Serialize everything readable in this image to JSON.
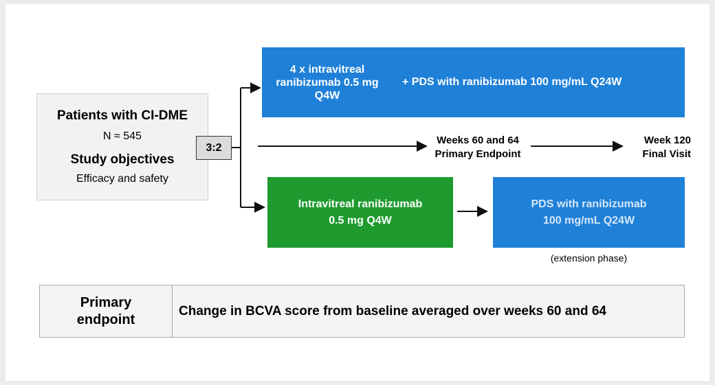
{
  "patients": {
    "title": "Patients with CI-DME",
    "n": "N ≈ 545",
    "objectives_title": "Study objectives",
    "objectives": "Efficacy and safety"
  },
  "ratio": "3:2",
  "arm1": {
    "induction": [
      "4 x intravitreal",
      "ranibizumab 0.5 mg",
      "Q4W"
    ],
    "maintenance": "+  PDS with ranibizumab 100 mg/mL Q24W"
  },
  "timeline": {
    "primary": [
      "Weeks 60 and 64",
      "Primary Endpoint"
    ],
    "final": [
      "Week 120",
      "Final Visit"
    ]
  },
  "arm2": {
    "control": [
      "Intravitreal ranibizumab",
      "0.5 mg Q4W"
    ],
    "extension": [
      "PDS with ranibizumab",
      "100 mg/mL Q24W"
    ],
    "note": "(extension phase)"
  },
  "endpoint": {
    "label": [
      "Primary",
      "endpoint"
    ],
    "text": "Change in BCVA score from baseline averaged over weeks 60 and 64"
  }
}
